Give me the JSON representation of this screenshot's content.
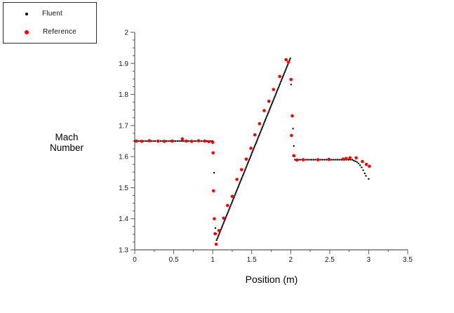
{
  "legend": {
    "items": [
      {
        "label": "Fluent",
        "color": "#000000"
      },
      {
        "label": "Reference",
        "color": "#ff0000"
      }
    ]
  },
  "chart_data": {
    "type": "scatter",
    "title": "",
    "xlabel": "Position (m)",
    "ylabel": "Mach Number",
    "xlim": [
      0,
      3.5
    ],
    "ylim": [
      1.3,
      2.0
    ],
    "grid": false,
    "legend_position": "outside-top-left",
    "axis_color": "#5a5a5a",
    "x_ticks": {
      "values": [
        0,
        0.5,
        1,
        1.5,
        2,
        2.5,
        3,
        3.5
      ],
      "labels": [
        "0",
        "0.5",
        "1",
        "1.5",
        "2",
        "2.5",
        "3",
        "3.5"
      ],
      "minor_step": 0.25
    },
    "y_ticks": {
      "values": [
        1.3,
        1.4,
        1.5,
        1.6,
        1.7,
        1.8,
        1.9,
        2
      ],
      "labels": [
        "1.3",
        "1.4",
        "1.5",
        "1.6",
        "1.7",
        "1.8",
        "1.9",
        "2"
      ],
      "minor_step": 0.025
    },
    "series": [
      {
        "name": "Fluent",
        "color": "#000000",
        "marker": "circle",
        "marker_radius": 1.2,
        "segments": [
          {
            "from": [
              0.0,
              1.65
            ],
            "to": [
              1.0,
              1.65
            ],
            "step": 0.024
          },
          {
            "from": [
              1.05,
              1.331
            ],
            "to": [
              1.995,
              1.916
            ],
            "step": 0.008
          },
          {
            "from": [
              2.055,
              1.59
            ],
            "to": [
              2.79,
              1.59
            ],
            "step": 0.024
          }
        ],
        "points": [
          [
            1.018,
            1.548
          ],
          [
            1.035,
            1.37
          ],
          [
            1.045,
            1.352
          ],
          [
            2.005,
            1.832
          ],
          [
            2.03,
            1.69
          ],
          [
            2.04,
            1.634
          ],
          [
            2.05,
            1.601
          ],
          [
            2.81,
            1.587
          ],
          [
            2.83,
            1.585
          ],
          [
            2.85,
            1.582
          ],
          [
            2.87,
            1.578
          ],
          [
            2.89,
            1.572
          ],
          [
            2.91,
            1.565
          ],
          [
            2.93,
            1.556
          ],
          [
            2.95,
            1.546
          ],
          [
            2.965,
            1.538
          ],
          [
            3.0,
            1.528
          ]
        ]
      },
      {
        "name": "Reference",
        "color": "#ff0000",
        "marker": "circle",
        "marker_radius": 2.3,
        "points": [
          [
            0.02,
            1.65
          ],
          [
            0.09,
            1.649
          ],
          [
            0.19,
            1.651
          ],
          [
            0.3,
            1.65
          ],
          [
            0.38,
            1.649
          ],
          [
            0.48,
            1.65
          ],
          [
            0.61,
            1.657
          ],
          [
            0.66,
            1.65
          ],
          [
            0.73,
            1.649
          ],
          [
            0.82,
            1.651
          ],
          [
            0.9,
            1.65
          ],
          [
            0.95,
            1.648
          ],
          [
            1.0,
            1.646
          ],
          [
            1.005,
            1.612
          ],
          [
            1.01,
            1.49
          ],
          [
            1.02,
            1.4
          ],
          [
            1.03,
            1.352
          ],
          [
            1.045,
            1.318
          ],
          [
            1.08,
            1.362
          ],
          [
            1.14,
            1.402
          ],
          [
            1.19,
            1.443
          ],
          [
            1.25,
            1.472
          ],
          [
            1.31,
            1.527
          ],
          [
            1.37,
            1.558
          ],
          [
            1.43,
            1.592
          ],
          [
            1.49,
            1.627
          ],
          [
            1.54,
            1.67
          ],
          [
            1.6,
            1.706
          ],
          [
            1.66,
            1.748
          ],
          [
            1.72,
            1.778
          ],
          [
            1.78,
            1.816
          ],
          [
            1.86,
            1.858
          ],
          [
            1.94,
            1.912
          ],
          [
            1.97,
            1.904
          ],
          [
            2.005,
            1.848
          ],
          [
            2.02,
            1.731
          ],
          [
            2.01,
            1.668
          ],
          [
            2.04,
            1.603
          ],
          [
            2.08,
            1.589
          ],
          [
            2.16,
            1.59
          ],
          [
            2.35,
            1.59
          ],
          [
            2.49,
            1.591
          ],
          [
            2.67,
            1.592
          ],
          [
            2.71,
            1.594
          ],
          [
            2.76,
            1.596
          ],
          [
            2.84,
            1.596
          ],
          [
            2.92,
            1.584
          ],
          [
            2.97,
            1.575
          ],
          [
            3.01,
            1.569
          ]
        ]
      }
    ]
  }
}
